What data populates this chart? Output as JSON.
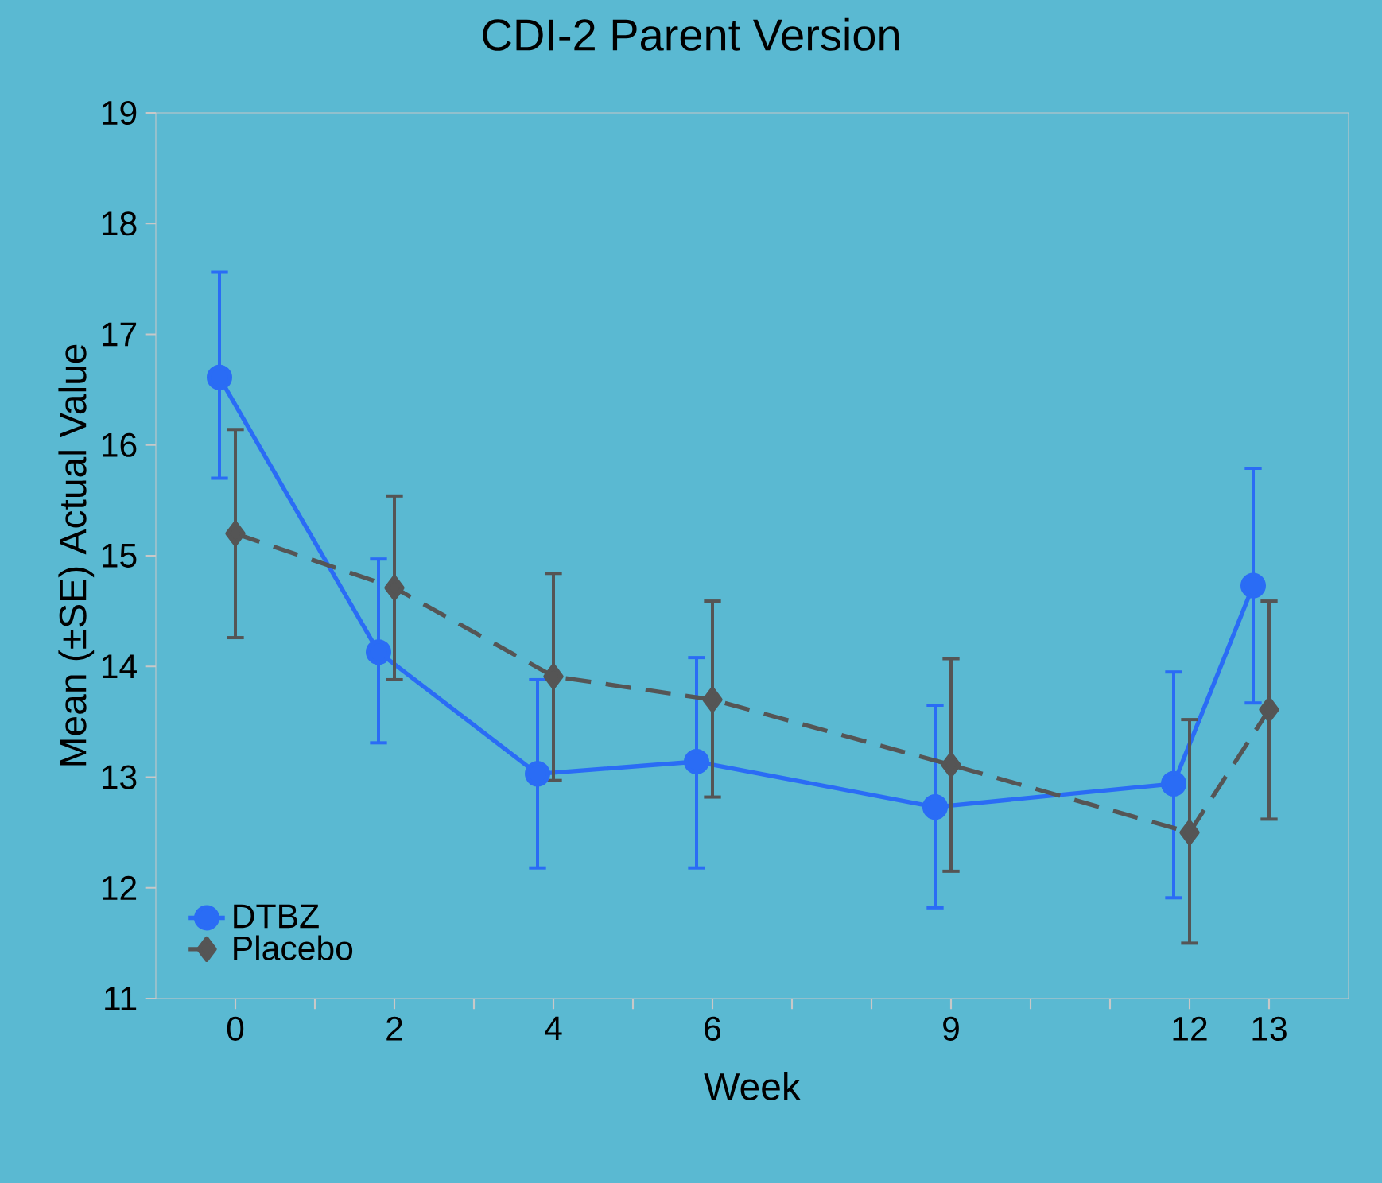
{
  "chart_data": {
    "type": "line",
    "title": "CDI-2 Parent Version",
    "xlabel": "Week",
    "ylabel": "Mean (±SE) Actual Value",
    "xlim": [
      -1,
      14
    ],
    "ylim": [
      11,
      19
    ],
    "xticks": [
      0,
      {
        "value": 1,
        "label": null
      },
      2,
      {
        "value": 3,
        "label": null
      },
      4,
      {
        "value": 5,
        "label": null
      },
      6,
      {
        "value": 7,
        "label": null
      },
      {
        "value": 8,
        "label": null
      },
      9,
      {
        "value": 10,
        "label": null
      },
      {
        "value": 11,
        "label": null
      },
      12,
      13
    ],
    "yticks": [
      11,
      12,
      13,
      14,
      15,
      16,
      17,
      18,
      19
    ],
    "grid": false,
    "legend": "bottom left",
    "series": [
      {
        "name": "DTBZ",
        "color": "#2a6cf5",
        "marker": "circle",
        "line_style": "solid",
        "x": [
          -0.2,
          1.8,
          3.8,
          5.8,
          8.8,
          11.8,
          12.8
        ],
        "values": [
          16.61,
          14.13,
          13.03,
          13.14,
          12.73,
          12.94,
          14.73
        ],
        "errors": [
          [
            15.7,
            17.56
          ],
          [
            13.31,
            14.97
          ],
          [
            12.18,
            13.88
          ],
          [
            12.18,
            14.08
          ],
          [
            11.82,
            13.65
          ],
          [
            11.91,
            13.95
          ],
          [
            13.67,
            15.79
          ]
        ]
      },
      {
        "name": "Placebo",
        "color": "#555555",
        "marker": "diamond",
        "line_style": "dashed",
        "x": [
          0,
          2,
          4,
          6,
          9,
          12,
          13
        ],
        "values": [
          15.2,
          14.71,
          13.91,
          13.7,
          13.11,
          12.5,
          13.61
        ],
        "errors": [
          [
            14.26,
            16.14
          ],
          [
            13.88,
            15.54
          ],
          [
            12.97,
            14.84
          ],
          [
            12.82,
            14.59
          ],
          [
            12.15,
            14.07
          ],
          [
            11.5,
            13.52
          ],
          [
            12.62,
            14.59
          ]
        ]
      }
    ]
  }
}
